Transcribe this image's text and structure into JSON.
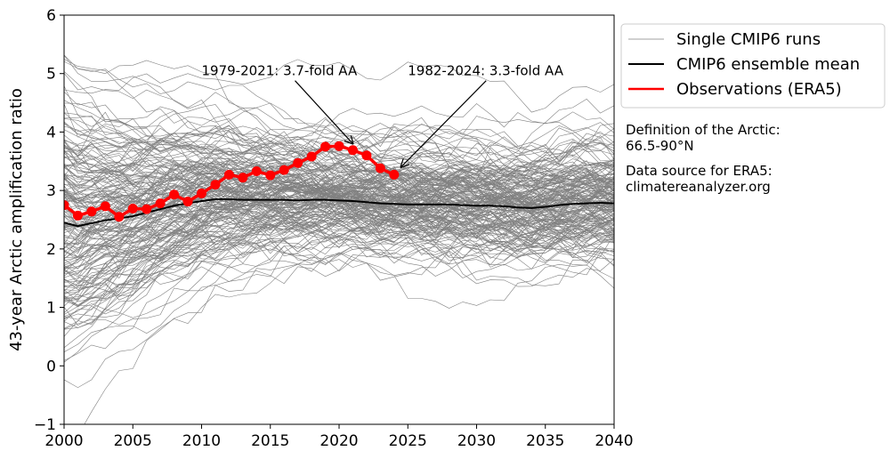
{
  "chart_data": {
    "type": "line",
    "title": "",
    "xlabel": "",
    "ylabel": "43-year Arctic amplification ratio",
    "xlim": [
      2000,
      2040
    ],
    "ylim": [
      -1,
      6
    ],
    "x_ticks": [
      2000,
      2005,
      2010,
      2015,
      2020,
      2025,
      2030,
      2035,
      2040
    ],
    "y_ticks": [
      -1,
      0,
      1,
      2,
      3,
      4,
      5,
      6
    ],
    "grid": false,
    "legend": {
      "placement": "outside-top-right",
      "entries": [
        {
          "label": "Single CMIP6 runs",
          "color": "#808080"
        },
        {
          "label": "CMIP6 ensemble mean",
          "color": "#000000"
        },
        {
          "label": "Observations (ERA5)",
          "color": "#ff0000"
        }
      ]
    },
    "series": [
      {
        "name": "CMIP6 ensemble mean",
        "color": "#000000",
        "x": [
          2000,
          2001,
          2002,
          2003,
          2004,
          2005,
          2006,
          2007,
          2008,
          2009,
          2010,
          2011,
          2012,
          2013,
          2014,
          2015,
          2016,
          2017,
          2018,
          2019,
          2020,
          2021,
          2022,
          2023,
          2024,
          2025,
          2026,
          2027,
          2028,
          2029,
          2030,
          2031,
          2032,
          2033,
          2034,
          2035,
          2036,
          2037,
          2038,
          2039,
          2040
        ],
        "values": [
          2.45,
          2.39,
          2.44,
          2.49,
          2.52,
          2.56,
          2.62,
          2.68,
          2.74,
          2.78,
          2.82,
          2.85,
          2.85,
          2.84,
          2.84,
          2.84,
          2.84,
          2.83,
          2.84,
          2.84,
          2.83,
          2.82,
          2.8,
          2.78,
          2.77,
          2.76,
          2.76,
          2.76,
          2.76,
          2.75,
          2.74,
          2.74,
          2.73,
          2.71,
          2.7,
          2.72,
          2.75,
          2.77,
          2.78,
          2.79,
          2.78
        ]
      },
      {
        "name": "Observations (ERA5)",
        "color": "#ff0000",
        "x": [
          2000,
          2001,
          2002,
          2003,
          2004,
          2005,
          2006,
          2007,
          2008,
          2009,
          2010,
          2011,
          2012,
          2013,
          2014,
          2015,
          2016,
          2017,
          2018,
          2019,
          2020,
          2021,
          2022,
          2023,
          2024
        ],
        "values": [
          2.75,
          2.57,
          2.64,
          2.73,
          2.55,
          2.69,
          2.68,
          2.78,
          2.93,
          2.81,
          2.95,
          3.1,
          3.27,
          3.22,
          3.33,
          3.26,
          3.35,
          3.47,
          3.58,
          3.75,
          3.76,
          3.69,
          3.6,
          3.38,
          3.27
        ]
      }
    ],
    "ensemble_runs": {
      "name": "Single CMIP6 runs",
      "color": "#808080",
      "count": 200,
      "x_start": 2000,
      "x_end": 2040,
      "note_range": [
        -1,
        6
      ]
    },
    "annotations": [
      {
        "text": "1979-2021: 3.7-fold AA",
        "text_x": 2010,
        "text_y": 5.0,
        "arrow_to_x": 2021,
        "arrow_to_y": 3.8
      },
      {
        "text": "1982-2024: 3.3-fold AA",
        "text_x": 2025,
        "text_y": 5.0,
        "arrow_to_x": 2024.5,
        "arrow_to_y": 3.4
      }
    ]
  },
  "notes": {
    "definition_line1": "Definition of the Arctic:",
    "definition_line2": "66.5-90°N",
    "source_line1": "Data source for ERA5:",
    "source_line2": "climatereanalyzer.org"
  }
}
